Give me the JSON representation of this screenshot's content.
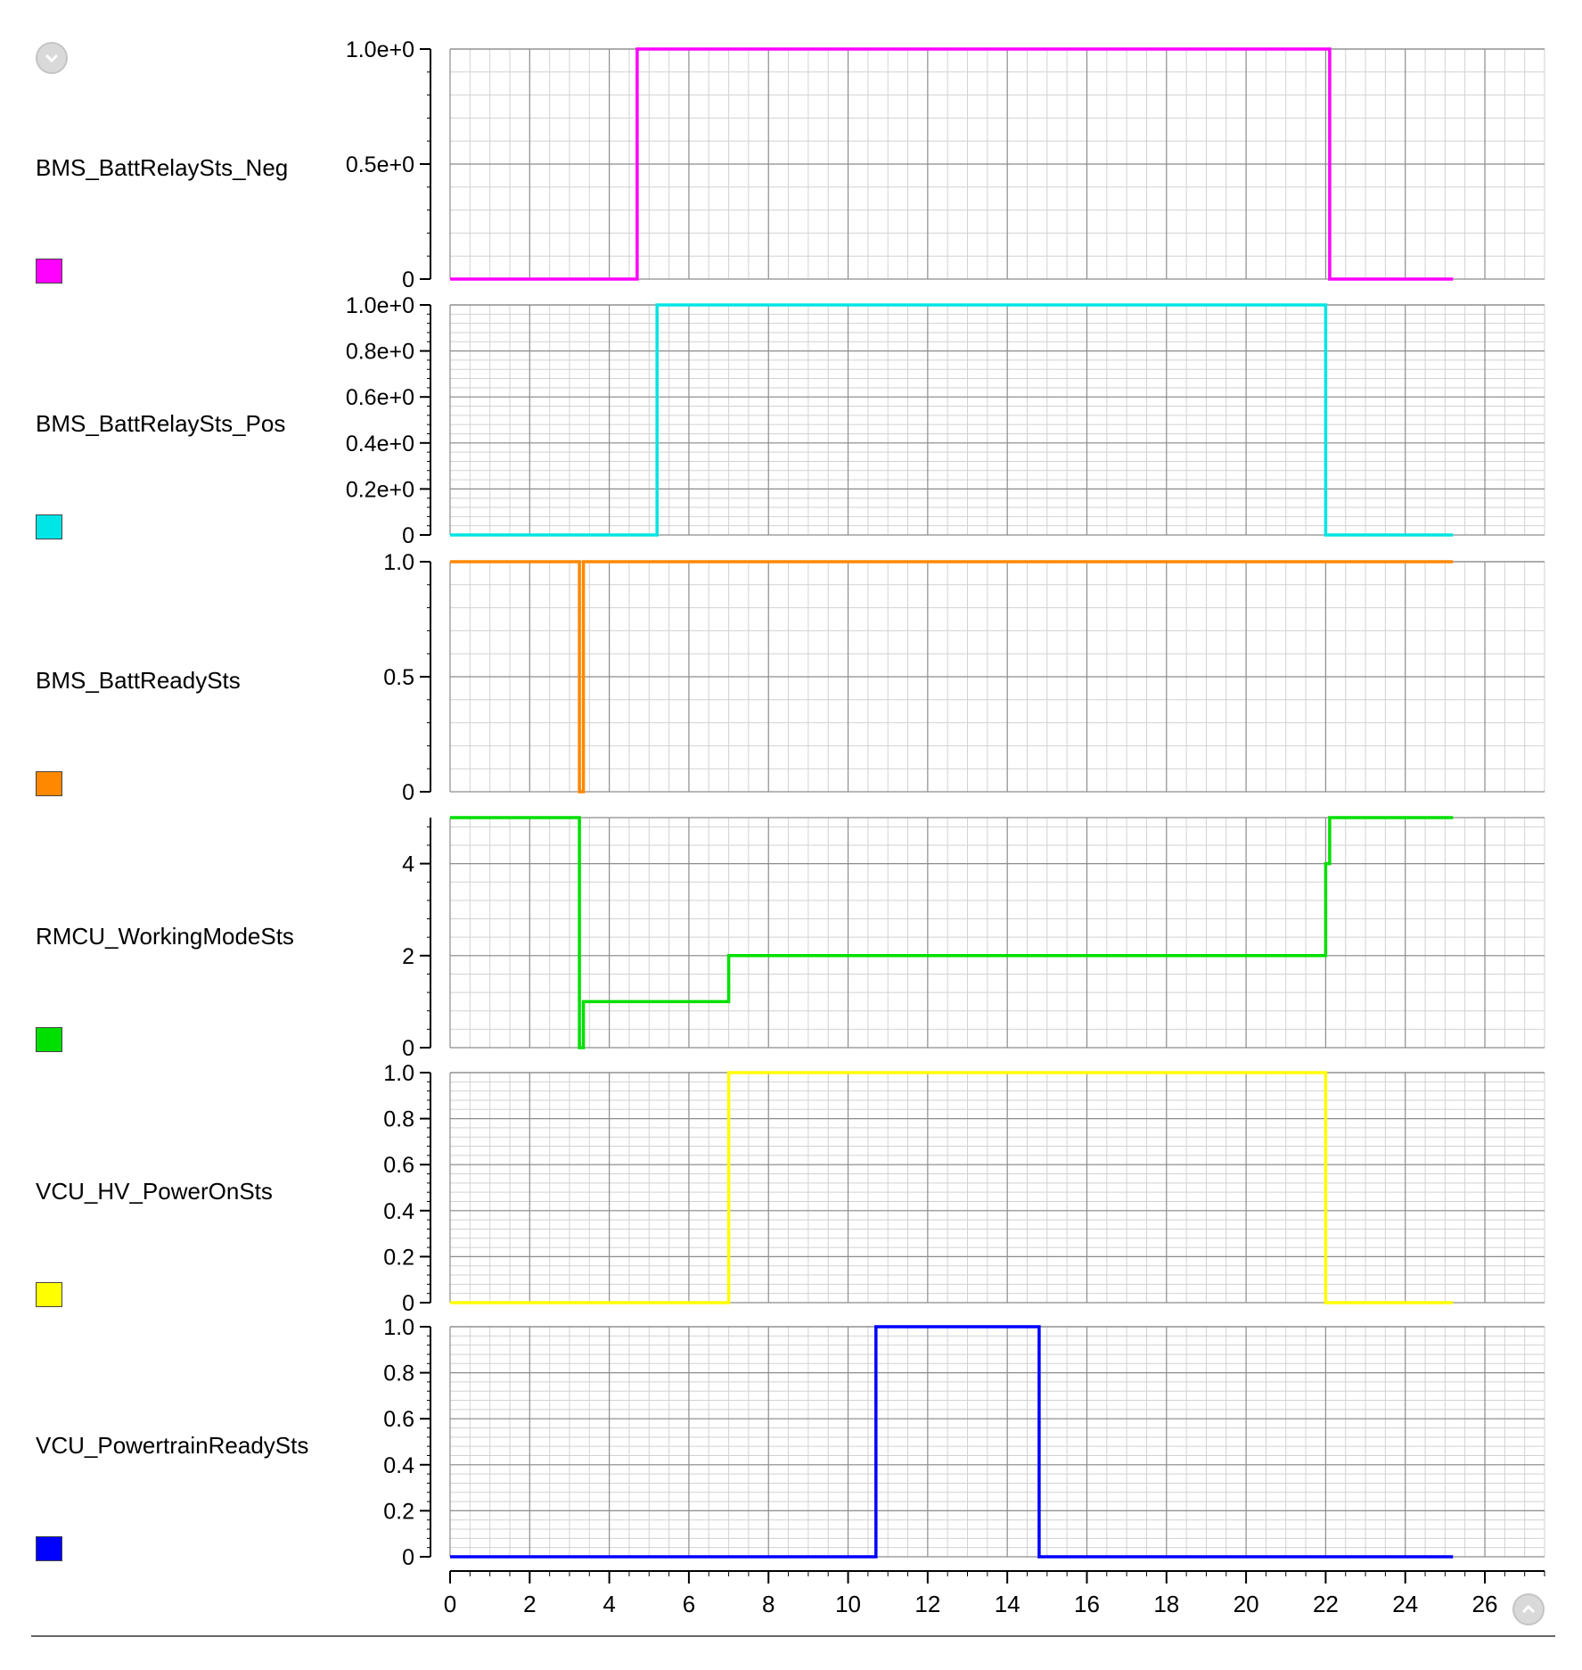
{
  "controls": {
    "scroll_down_icon": "chevron-down-icon",
    "scroll_up_icon": "chevron-up-icon"
  },
  "chart_data": {
    "type": "line",
    "subtype": "stacked-step-signal-traces",
    "shared_x": {
      "ticks": [
        0,
        2,
        4,
        6,
        8,
        10,
        12,
        14,
        16,
        18,
        20,
        22,
        24,
        26
      ],
      "tick_labels": [
        "0",
        "2",
        "4",
        "6",
        "8",
        "10",
        "12",
        "14",
        "16",
        "18",
        "20",
        "22",
        "24",
        "26"
      ],
      "xlim": [
        0,
        27.5
      ],
      "xlabel": ""
    },
    "grid": true,
    "legend": "left",
    "series": [
      {
        "name": "BMS_BattRelaySts_Neg",
        "color": "#ff00ff",
        "ylim": [
          0,
          1
        ],
        "yticks": [
          0,
          0.5,
          1
        ],
        "ytick_labels": [
          "0",
          "0.5e+0",
          "1.0e+0"
        ],
        "x": [
          0,
          4.7,
          4.7,
          22.1,
          22.1,
          25.2
        ],
        "y": [
          0,
          0,
          1,
          1,
          0,
          0
        ]
      },
      {
        "name": "BMS_BattRelaySts_Pos",
        "color": "#00e5e5",
        "ylim": [
          0,
          1
        ],
        "yticks": [
          0,
          0.2,
          0.4,
          0.6,
          0.8,
          1
        ],
        "ytick_labels": [
          "0",
          "0.2e+0",
          "0.4e+0",
          "0.6e+0",
          "0.8e+0",
          "1.0e+0"
        ],
        "x": [
          0,
          5.2,
          5.2,
          22.0,
          22.0,
          25.2
        ],
        "y": [
          0,
          0,
          1,
          1,
          0,
          0
        ]
      },
      {
        "name": "BMS_BattReadySts",
        "color": "#ff8800",
        "ylim": [
          0,
          1
        ],
        "yticks": [
          0,
          0.5,
          1
        ],
        "ytick_labels": [
          "0",
          "0.5",
          "1.0"
        ],
        "x": [
          0,
          3.25,
          3.25,
          3.35,
          3.35,
          25.2
        ],
        "y": [
          1,
          1,
          0,
          0,
          1,
          1
        ]
      },
      {
        "name": "RMCU_WorkingModeSts",
        "color": "#00e000",
        "ylim": [
          0,
          5
        ],
        "yticks": [
          0,
          2,
          4
        ],
        "ytick_labels": [
          "0",
          "2",
          "4"
        ],
        "x": [
          0,
          3.25,
          3.25,
          3.35,
          3.35,
          7.0,
          7.0,
          22.0,
          22.0,
          22.1,
          22.1,
          25.2
        ],
        "y": [
          5,
          5,
          0,
          0,
          1,
          1,
          2,
          2,
          4,
          4,
          5,
          5
        ]
      },
      {
        "name": "VCU_HV_PowerOnSts",
        "color": "#ffff00",
        "ylim": [
          0,
          1
        ],
        "yticks": [
          0,
          0.2,
          0.4,
          0.6,
          0.8,
          1
        ],
        "ytick_labels": [
          "0",
          "0.2",
          "0.4",
          "0.6",
          "0.8",
          "1.0"
        ],
        "x": [
          0,
          7.0,
          7.0,
          22.0,
          22.0,
          25.2
        ],
        "y": [
          0,
          0,
          1,
          1,
          0,
          0
        ]
      },
      {
        "name": "VCU_PowertrainReadySts",
        "color": "#0000ff",
        "ylim": [
          0,
          1
        ],
        "yticks": [
          0,
          0.2,
          0.4,
          0.6,
          0.8,
          1
        ],
        "ytick_labels": [
          "0",
          "0.2",
          "0.4",
          "0.6",
          "0.8",
          "1.0"
        ],
        "x": [
          0,
          10.7,
          10.7,
          14.8,
          14.8,
          25.2
        ],
        "y": [
          0,
          0,
          1,
          1,
          0,
          0
        ]
      }
    ]
  }
}
